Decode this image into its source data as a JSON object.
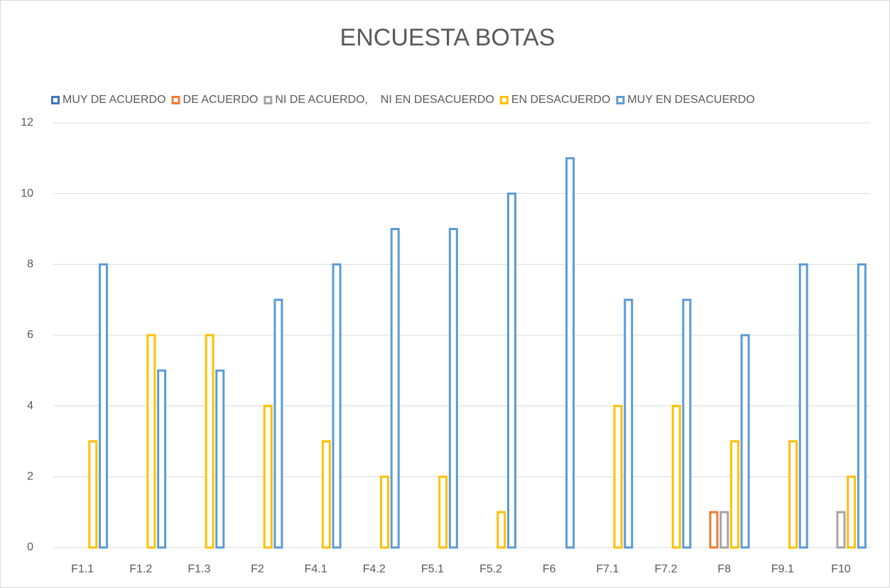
{
  "chart_data": {
    "type": "bar",
    "title": "ENCUESTA BOTAS",
    "categories": [
      "F1.1",
      "F1.2",
      "F1.3",
      "F2",
      "F4.1",
      "F4.2",
      "F5.1",
      "F5.2",
      "F6",
      "F7.1",
      "F7.2",
      "F8",
      "F9.1",
      "F10"
    ],
    "series": [
      {
        "name": "MUY DE ACUERDO",
        "color": "#4472c4",
        "values": [
          0,
          0,
          0,
          0,
          0,
          0,
          0,
          0,
          0,
          0,
          0,
          0,
          0,
          0
        ]
      },
      {
        "name": "DE ACUERDO",
        "color": "#ed7d31",
        "values": [
          0,
          0,
          0,
          0,
          0,
          0,
          0,
          0,
          0,
          0,
          0,
          1,
          0,
          0
        ]
      },
      {
        "name": "NI DE ACUERDO,    NI EN DESACUERDO",
        "color": "#a5a5a5",
        "values": [
          0,
          0,
          0,
          0,
          0,
          0,
          0,
          0,
          0,
          0,
          0,
          1,
          0,
          1
        ]
      },
      {
        "name": "EN DESACUERDO",
        "color": "#ffc000",
        "values": [
          3,
          6,
          6,
          4,
          3,
          2,
          2,
          1,
          0,
          4,
          4,
          3,
          3,
          2
        ]
      },
      {
        "name": "MUY EN DESACUERDO",
        "color": "#5b9bd5",
        "values": [
          8,
          5,
          5,
          7,
          8,
          9,
          9,
          10,
          11,
          7,
          7,
          6,
          8,
          8
        ]
      }
    ],
    "ylim": [
      0,
      12
    ],
    "yticks": [
      0,
      2,
      4,
      6,
      8,
      10,
      12
    ],
    "grid": true,
    "legend": "top"
  }
}
